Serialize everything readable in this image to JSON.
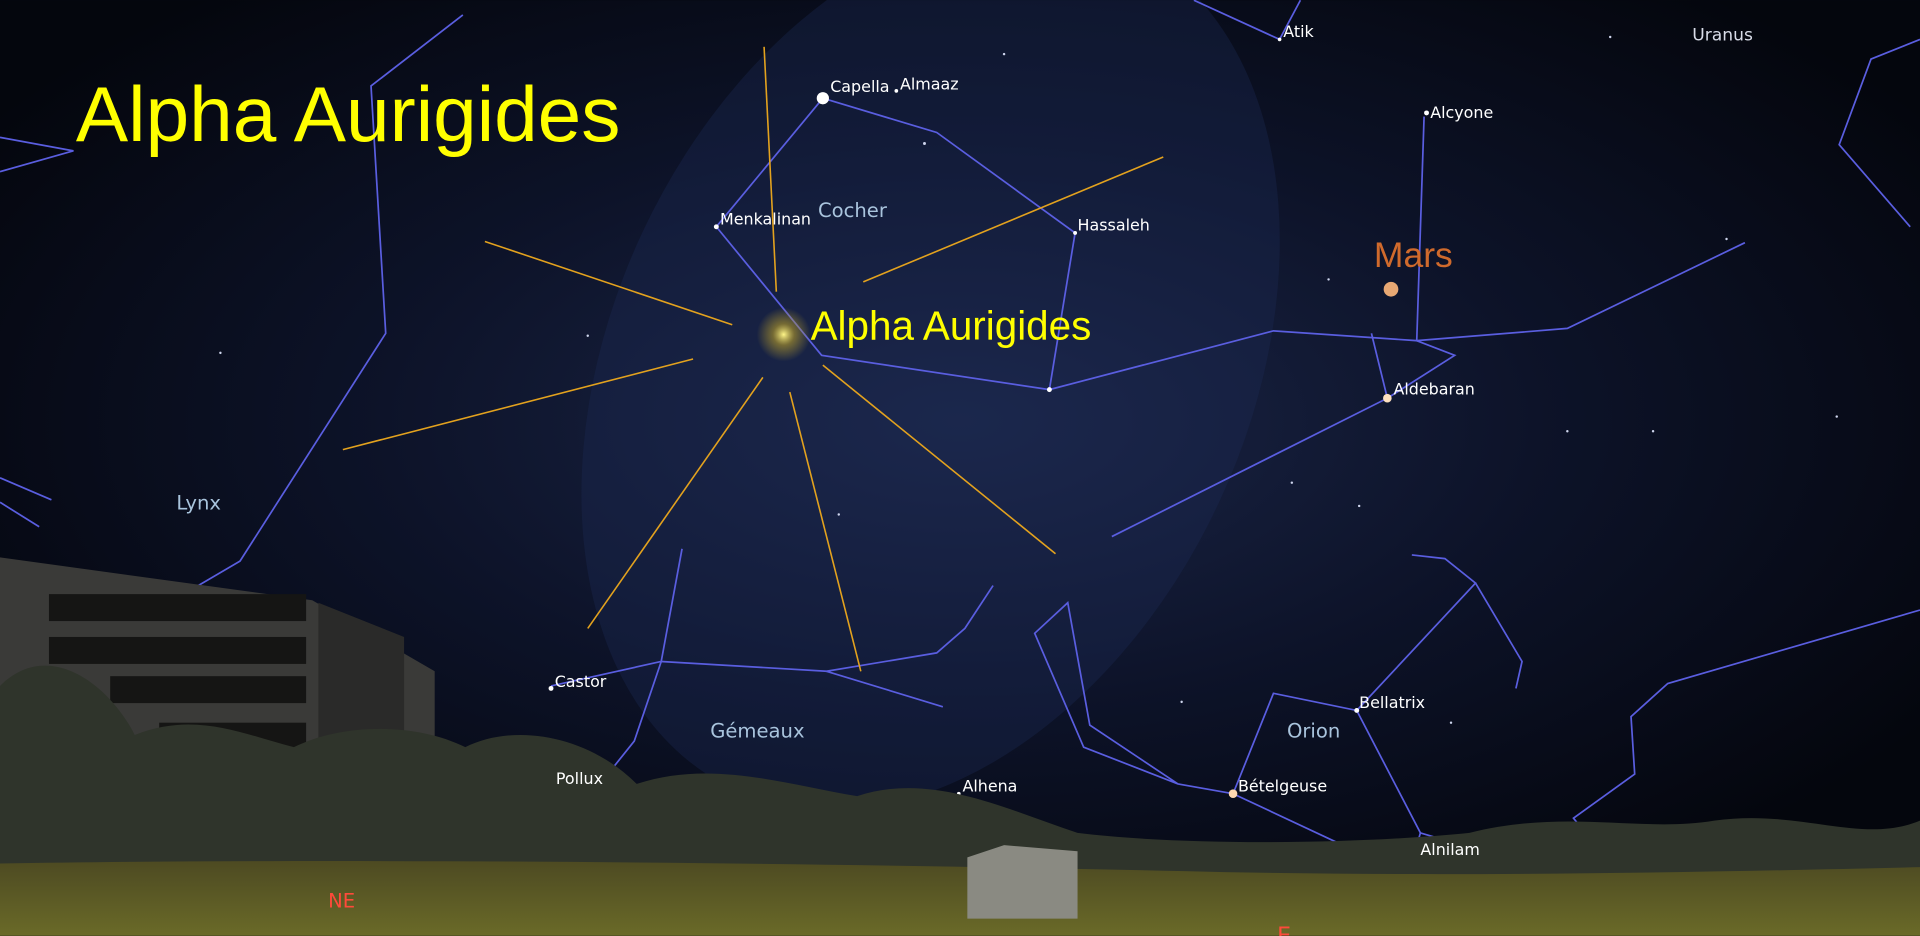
{
  "title": "Alpha Aurigides",
  "radiant": "Alpha Aurigides",
  "constellations": [
    "Cocher",
    "Lynx",
    "Gémeaux",
    "Orion"
  ],
  "planets": [
    "Mars",
    "Uranus"
  ],
  "stars": [
    "Atik",
    "Capella",
    "Almaaz",
    "Alcyone",
    "Menkalinan",
    "Hassaleh",
    "Aldebaran",
    "Castor",
    "Pollux",
    "Alhena",
    "Bellatrix",
    "Bételgeuse",
    "Alnilam"
  ],
  "compass": [
    "NE",
    "E"
  ]
}
